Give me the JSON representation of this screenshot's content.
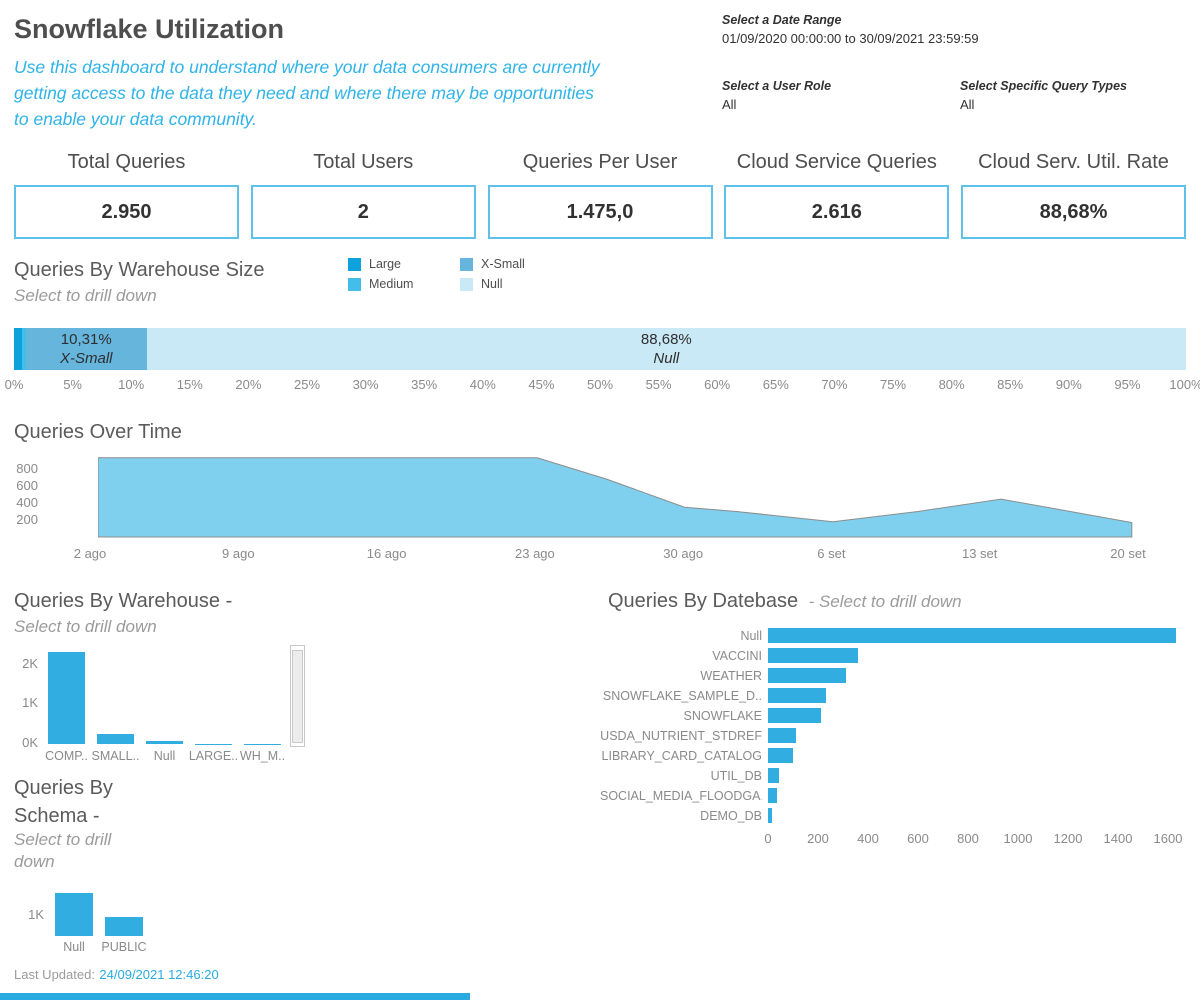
{
  "header": {
    "title": "Snowflake Utilization",
    "subtitle": "Use this dashboard to understand where your data consumers are currently getting access to the data they need and where there may be opportunities to enable your data community.",
    "filters": {
      "date_range": {
        "label": "Select a Date Range",
        "value": "01/09/2020 00:00:00 to 30/09/2021 23:59:59"
      },
      "user_role": {
        "label": "Select a User Role",
        "value": "All"
      },
      "query_types": {
        "label": "Select Specific Query Types",
        "value": "All"
      }
    }
  },
  "kpis": [
    {
      "label": "Total Queries",
      "value": "2.950"
    },
    {
      "label": "Total Users",
      "value": "2"
    },
    {
      "label": "Queries Per User",
      "value": "1.475,0"
    },
    {
      "label": "Cloud Service Queries",
      "value": "2.616"
    },
    {
      "label": "Cloud Serv. Util. Rate",
      "value": "88,68%"
    }
  ],
  "warehouse_size": {
    "title": "Queries By Warehouse Size",
    "subtitle": "Select to drill down",
    "legend": [
      {
        "label": "Large",
        "color": "#0da2dc"
      },
      {
        "label": "Medium",
        "color": "#45bde9"
      },
      {
        "label": "X-Small",
        "color": "#66b5dd"
      },
      {
        "label": "Null",
        "color": "#c9e9f7"
      }
    ]
  },
  "footer": {
    "label": "Last Updated:",
    "value": "24/09/2021 12:46:20"
  },
  "colors": {
    "accent": "#29abe2",
    "bar_blue": "#31ade1",
    "area_fill": "#7fd0ee",
    "area_stroke": "#8c8c8c",
    "kpi_border": "#5ec1e9"
  },
  "chart_data": [
    {
      "id": "warehouse_size_bar",
      "type": "stacked_bar_100",
      "title": "Queries By Warehouse Size",
      "segments": [
        {
          "label": "Large",
          "pct": 0.65,
          "color": "#0da2dc",
          "show_label": false,
          "display": ""
        },
        {
          "label": "Medium",
          "pct": 0.36,
          "color": "#45bde9",
          "show_label": false,
          "display": ""
        },
        {
          "label": "X-Small",
          "pct": 10.31,
          "color": "#66b5dd",
          "show_label": true,
          "display": "10,31%"
        },
        {
          "label": "Null",
          "pct": 88.68,
          "color": "#c9e9f7",
          "show_label": true,
          "display": "88,68%"
        }
      ],
      "axis": {
        "min": 0,
        "max": 100,
        "step": 5,
        "format": "percent"
      }
    },
    {
      "id": "queries_over_time",
      "type": "area",
      "title": "Queries Over Time",
      "x_labels": [
        "2 ago",
        "9 ago",
        "16 ago",
        "23 ago",
        "30 ago",
        "6 set",
        "13 set",
        "20 set"
      ],
      "points": [
        [
          0,
          930
        ],
        [
          42.3,
          930
        ],
        [
          49,
          680
        ],
        [
          56.5,
          350
        ],
        [
          61.5,
          300
        ],
        [
          70.8,
          180
        ],
        [
          79,
          300
        ],
        [
          87,
          445
        ],
        [
          99.6,
          170
        ]
      ],
      "ylim": [
        0,
        1010
      ],
      "yticks": [
        200,
        400,
        600,
        800
      ],
      "fill": "#7fd0ee",
      "stroke": "#8c8c8c"
    },
    {
      "id": "queries_by_warehouse",
      "type": "bar",
      "title": "Queries By Warehouse -",
      "subtitle": "Select to drill down",
      "categories": [
        "COMP..",
        "SMALL..",
        "Null",
        "LARGE..",
        "WH_M.."
      ],
      "values": [
        2320,
        260,
        70,
        8,
        5
      ],
      "yticks": [
        {
          "v": 0,
          "label": "0K"
        },
        {
          "v": 1000,
          "label": "1K"
        },
        {
          "v": 2000,
          "label": "2K"
        }
      ],
      "ylim": [
        0,
        2450
      ],
      "color": "#31ade1"
    },
    {
      "id": "queries_by_schema",
      "type": "bar",
      "title": "Queries By Schema -",
      "subtitle": "Select to drill down",
      "categories": [
        "Null",
        "PUBLIC"
      ],
      "values": [
        2050,
        900
      ],
      "yticks": [
        {
          "v": 1000,
          "label": "1K"
        }
      ],
      "ylim": [
        0,
        2450
      ],
      "color": "#31ade1"
    },
    {
      "id": "queries_by_database",
      "type": "hbar",
      "title": "Queries By Datebase",
      "subtitle": "- Select to drill down",
      "categories": [
        "Null",
        "VACCINI",
        "WEATHER",
        "SNOWFLAKE_SAMPLE_D..",
        "SNOWFLAKE",
        "USDA_NUTRIENT_STDREF",
        "LIBRARY_CARD_CATALOG",
        "UTIL_DB",
        "SOCIAL_MEDIA_FLOODGA..",
        "DEMO_DB"
      ],
      "values": [
        1630,
        360,
        310,
        230,
        210,
        110,
        100,
        45,
        35,
        15
      ],
      "xticks": [
        0,
        200,
        400,
        600,
        800,
        1000,
        1200,
        1400,
        1600
      ],
      "xlim": [
        0,
        1680
      ],
      "color": "#31ade1"
    }
  ]
}
